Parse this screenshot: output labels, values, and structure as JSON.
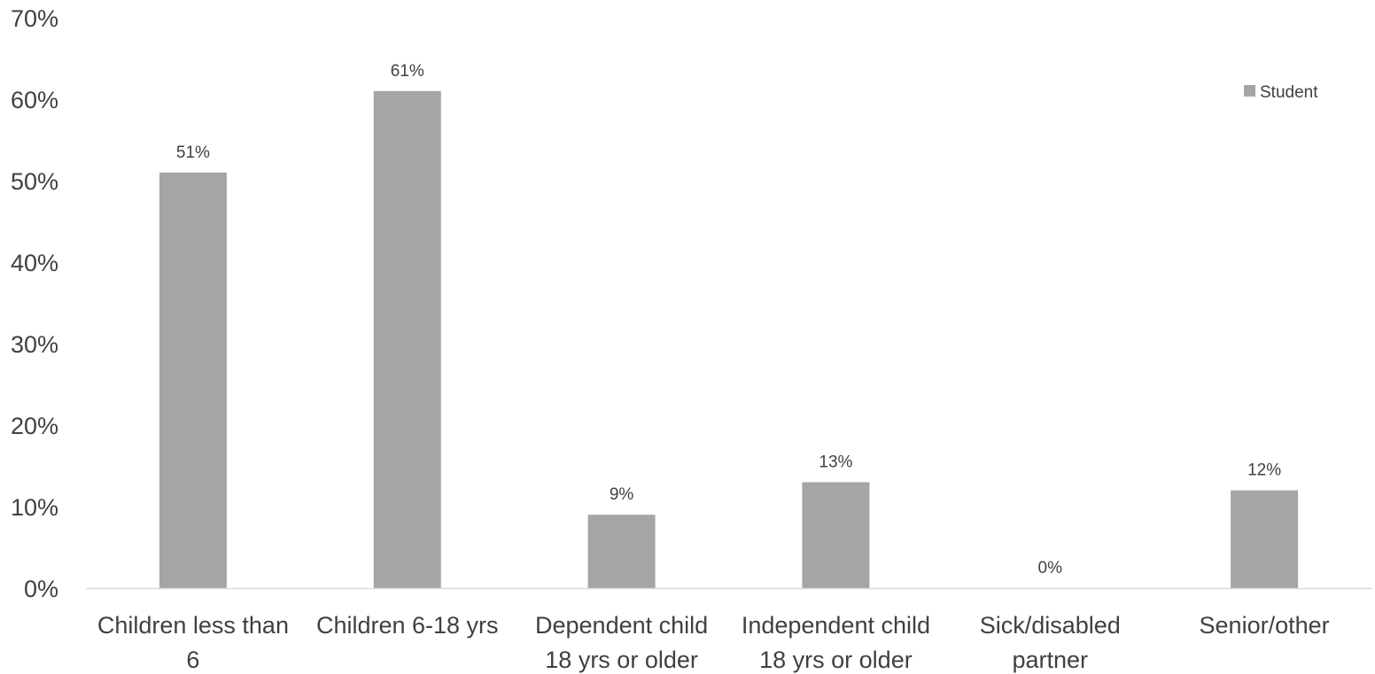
{
  "chart_data": {
    "type": "bar",
    "categories": [
      [
        "Children less than",
        "6"
      ],
      [
        "Children 6-18 yrs"
      ],
      [
        "Dependent child",
        "18 yrs or older"
      ],
      [
        "Independent child",
        "18 yrs or older"
      ],
      [
        "Sick/disabled",
        "partner"
      ],
      [
        "Senior/other"
      ]
    ],
    "series": [
      {
        "name": "Student",
        "values": [
          51,
          61,
          9,
          13,
          0,
          12
        ],
        "data_labels": [
          "51%",
          "61%",
          "9%",
          "13%",
          "0%",
          "12%"
        ],
        "color": "#a5a5a5"
      }
    ],
    "title": "",
    "xlabel": "",
    "ylabel": "",
    "ylim": [
      0,
      70
    ],
    "yticks": [
      0,
      10,
      20,
      30,
      40,
      50,
      60,
      70
    ],
    "ytick_labels": [
      "0%",
      "10%",
      "20%",
      "30%",
      "40%",
      "50%",
      "60%",
      "70%"
    ],
    "grid": false,
    "legend_position": "top-right",
    "axis_color": "#d9d9d9",
    "text_color": "#404040"
  }
}
